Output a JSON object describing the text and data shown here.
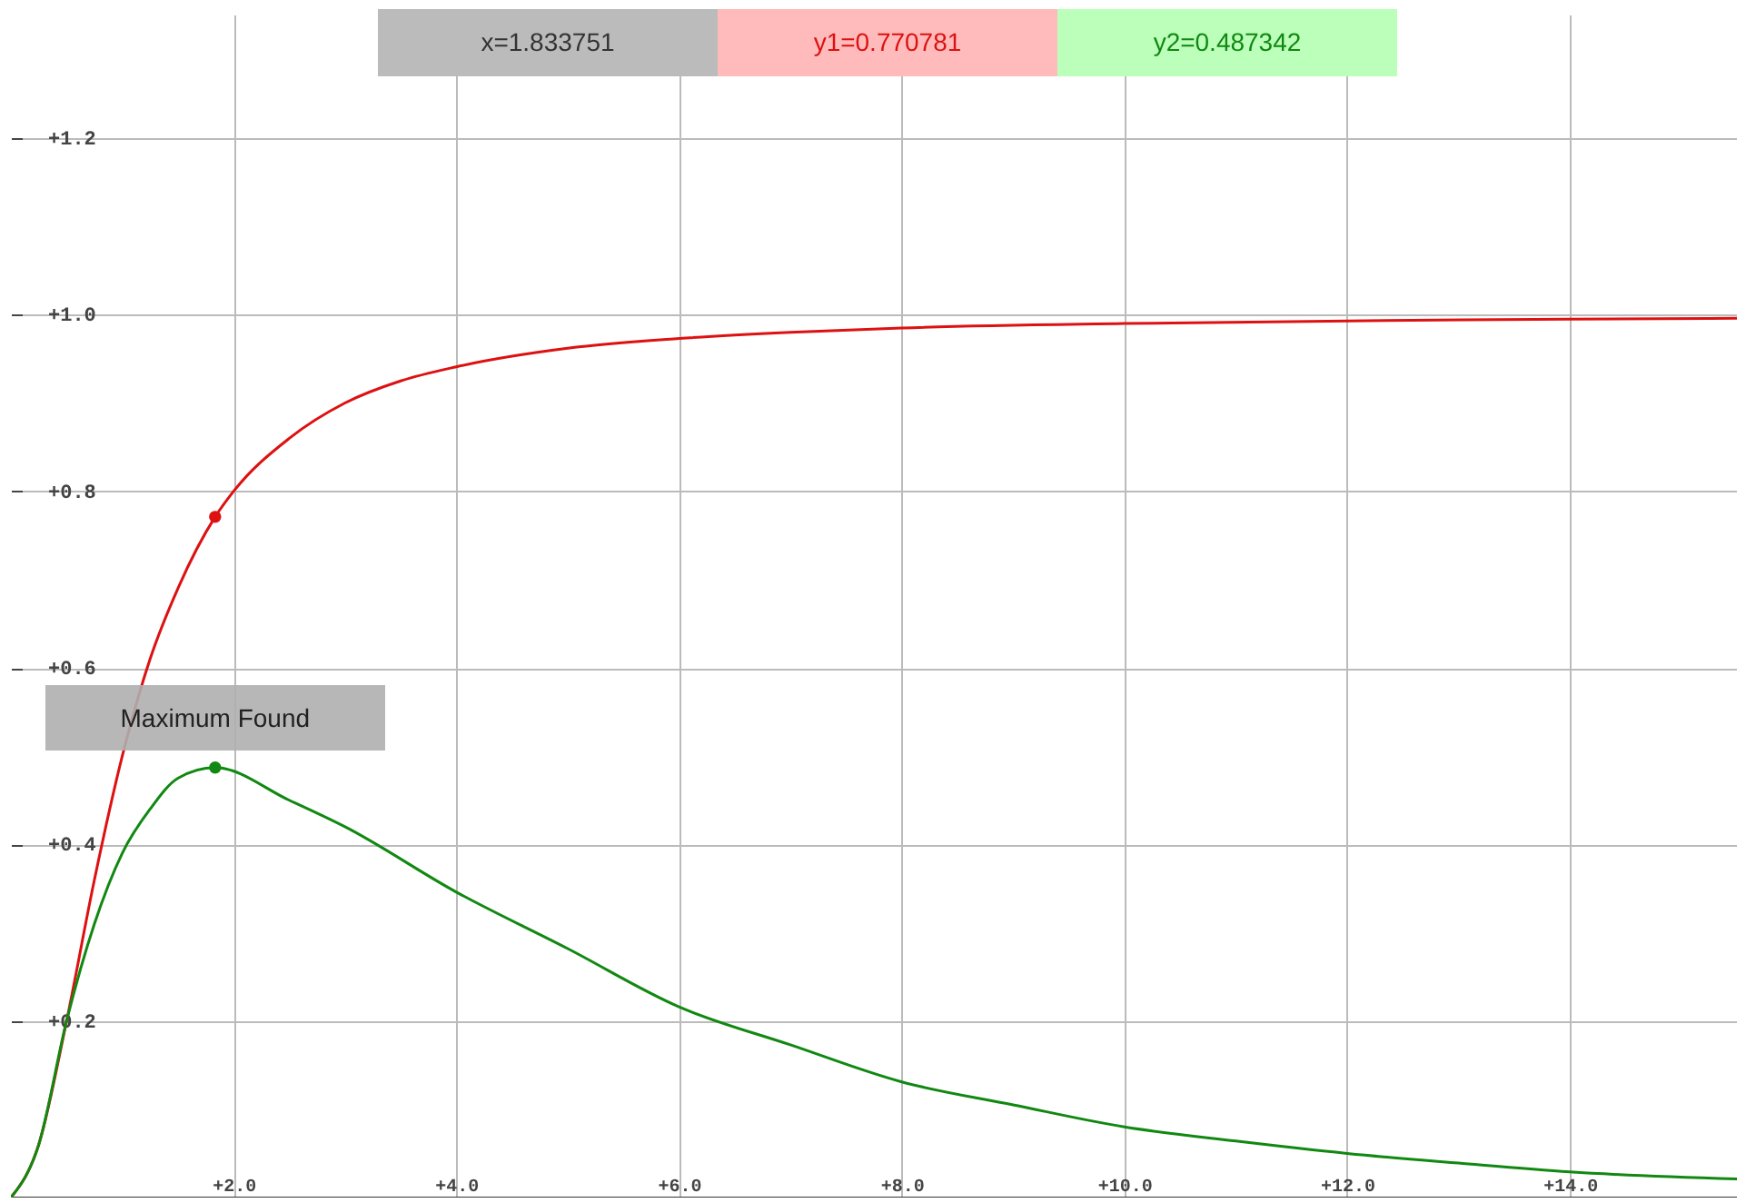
{
  "chart_data": {
    "type": "line",
    "xlim": [
      0,
      15.5
    ],
    "ylim": [
      0,
      1.34
    ],
    "xticks": [
      {
        "value": 2,
        "label": "+2.0"
      },
      {
        "value": 4,
        "label": "+4.0"
      },
      {
        "value": 6,
        "label": "+6.0"
      },
      {
        "value": 8,
        "label": "+8.0"
      },
      {
        "value": 10,
        "label": "+10.0"
      },
      {
        "value": 12,
        "label": "+12.0"
      },
      {
        "value": 14,
        "label": "+14.0"
      }
    ],
    "yticks": [
      {
        "value": 0.2,
        "label": "+0.2"
      },
      {
        "value": 0.4,
        "label": "+0.4"
      },
      {
        "value": 0.6,
        "label": "+0.6"
      },
      {
        "value": 0.8,
        "label": "+0.8"
      },
      {
        "value": 1,
        "label": "+1.0"
      },
      {
        "value": 1.2,
        "label": "+1.2"
      }
    ],
    "grid": true,
    "line_style": "solid",
    "series": [
      {
        "color": "#dd1111",
        "x": [
          0,
          0.25,
          0.5,
          0.75,
          1,
          1.25,
          1.5,
          1.834,
          2,
          2.5,
          3,
          3.5,
          4,
          5,
          6,
          7,
          8,
          10,
          12,
          14,
          15.5
        ],
        "values": [
          0,
          0.06,
          0.2,
          0.36,
          0.5,
          0.61,
          0.69,
          0.771,
          0.8,
          0.86,
          0.9,
          0.925,
          0.941,
          0.962,
          0.973,
          0.98,
          0.985,
          0.99,
          0.993,
          0.995,
          0.996
        ]
      },
      {
        "color": "#118811",
        "x": [
          0,
          0.25,
          0.5,
          0.75,
          1,
          1.25,
          1.5,
          1.834,
          2.5,
          3,
          4,
          5,
          6,
          7,
          8,
          9,
          10,
          11,
          12,
          13,
          14,
          15.5
        ],
        "values": [
          0,
          0.06,
          0.2,
          0.31,
          0.39,
          0.44,
          0.475,
          0.487,
          0.45,
          0.42,
          0.346,
          0.282,
          0.216,
          0.173,
          0.131,
          0.105,
          0.08,
          0.064,
          0.05,
          0.039,
          0.029,
          0.021
        ]
      },
      {
        "type": "scatter",
        "color": "#dd1111",
        "x": [
          1.834
        ],
        "values": [
          0.771
        ]
      },
      {
        "type": "scatter",
        "color": "#118811",
        "x": [
          1.834
        ],
        "values": [
          0.487
        ]
      }
    ],
    "annotations": [
      "x=1.833751",
      "y1=0.770781",
      "y2=0.487342",
      {
        "text": "Maximum Found",
        "x": 1.834,
        "y": 0.487
      }
    ]
  }
}
